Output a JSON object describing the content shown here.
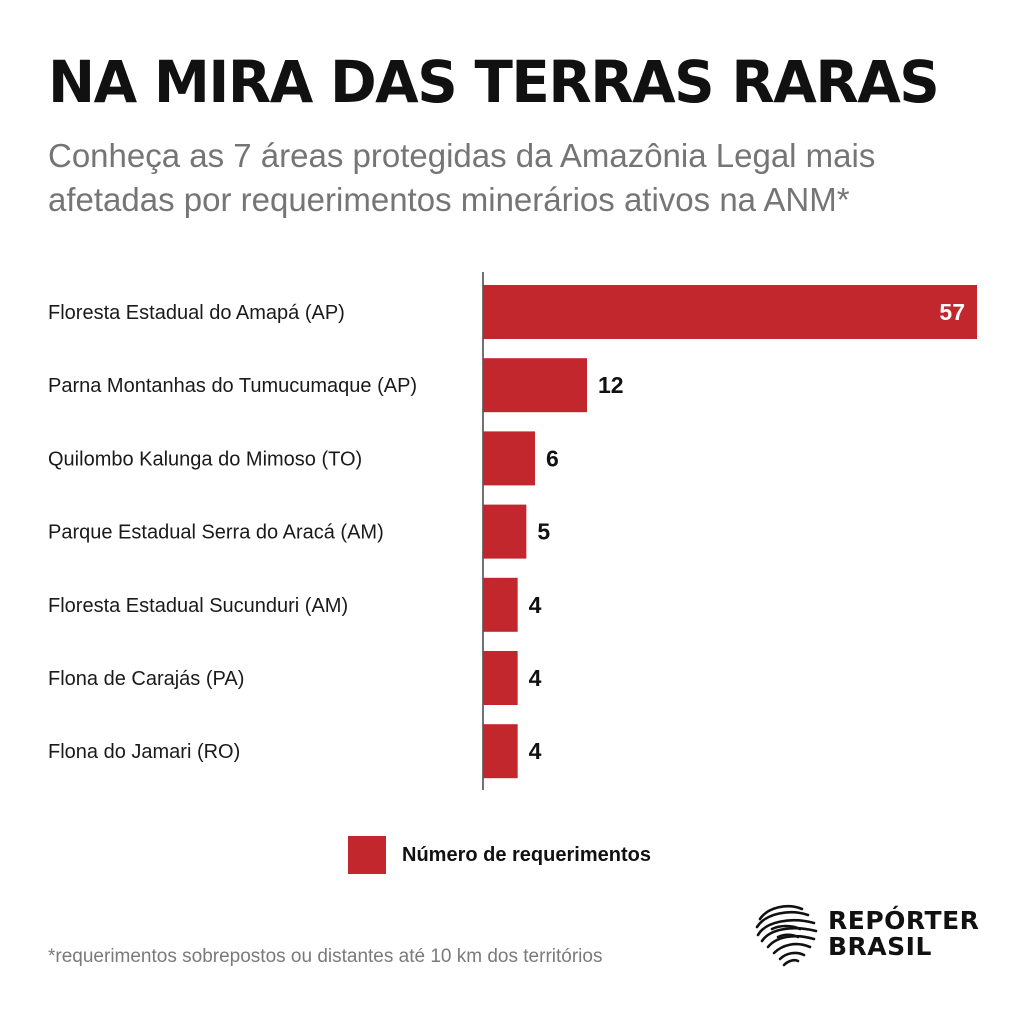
{
  "header": {
    "title": "NA MIRA DAS TERRAS RARAS",
    "subtitle": "Conheça as 7 áreas protegidas da Amazônia Legal mais afetadas por requerimentos minerários ativos na ANM*"
  },
  "colors": {
    "bar": "#c1272d",
    "inside_label": "#ffffff",
    "outside_label": "#111111"
  },
  "chart_data": {
    "type": "bar",
    "orientation": "horizontal",
    "categories": [
      "Floresta Estadual do Amapá (AP)",
      "Parna Montanhas do Tumucumaque (AP)",
      "Quilombo Kalunga do Mimoso (TO)",
      "Parque Estadual Serra do Aracá (AM)",
      "Floresta Estadual Sucunduri (AM)",
      "Flona de Carajás (PA)",
      "Flona do Jamari (RO)"
    ],
    "series": [
      {
        "name": "Número de requerimentos",
        "values": [
          57,
          12,
          6,
          5,
          4,
          4,
          4
        ]
      }
    ],
    "xlim": [
      0,
      57
    ],
    "grid": false,
    "legend_position": "bottom"
  },
  "legend": {
    "label": "Número de requerimentos"
  },
  "footnote": "*requerimentos sobrepostos ou distantes até 10 km dos territórios",
  "logo": {
    "line1": "REPÓRTER",
    "line2": "BRASIL",
    "icon": "fingerprint-brazil-map-icon"
  }
}
